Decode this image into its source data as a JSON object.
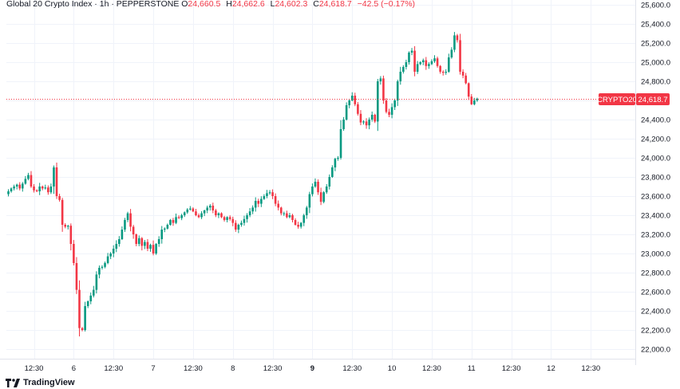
{
  "legend": {
    "title": "Global 20 Crypto Index · 1h · PEPPERSTONE",
    "o_label": "O",
    "o_value": "24,660.5",
    "h_label": "H",
    "h_value": "24,662.6",
    "l_label": "L",
    "l_value": "24,602.3",
    "c_label": "C",
    "c_value": "24,618.7",
    "change": "−42.5 (−0.17%)"
  },
  "price_tag": {
    "symbol": "CRYPTO20",
    "value": "24,618.7"
  },
  "brand": {
    "name": "TradingView"
  },
  "colors": {
    "up": "#089981",
    "down": "#f23645",
    "grid": "#f0f3fa",
    "axis_text": "#131722"
  },
  "chart_data": {
    "type": "candlestick",
    "title": "Global 20 Crypto Index · 1h · PEPPERSTONE",
    "ylim": [
      21900,
      25650
    ],
    "grid": true,
    "y_ticks": [
      22000,
      22200,
      22400,
      22600,
      22800,
      23000,
      23200,
      23400,
      23600,
      23800,
      24000,
      24200,
      24400,
      24600,
      24800,
      25000,
      25200,
      25400,
      25600
    ],
    "y_tick_labels": [
      "22,000.0",
      "22,200.0",
      "22,400.0",
      "22,600.0",
      "22,800.0",
      "23,000.0",
      "23,200.0",
      "23,400.0",
      "23,600.0",
      "23,800.0",
      "24,000.0",
      "24,200.0",
      "24,400.0",
      "24,600.0",
      "24,800.0",
      "25,000.0",
      "25,200.0",
      "25,400.0",
      "25,600.0"
    ],
    "x_ticks": [
      {
        "label": "12:30",
        "index": 9,
        "bold": false
      },
      {
        "label": "6",
        "index": 23,
        "bold": false
      },
      {
        "label": "12:30",
        "index": 37,
        "bold": false
      },
      {
        "label": "7",
        "index": 51,
        "bold": false
      },
      {
        "label": "12:30",
        "index": 65,
        "bold": false
      },
      {
        "label": "8",
        "index": 79,
        "bold": false
      },
      {
        "label": "12:30",
        "index": 93,
        "bold": false
      },
      {
        "label": "9",
        "index": 107,
        "bold": true
      },
      {
        "label": "12:30",
        "index": 121,
        "bold": false
      },
      {
        "label": "10",
        "index": 135,
        "bold": false
      },
      {
        "label": "12:30",
        "index": 149,
        "bold": false
      },
      {
        "label": "11",
        "index": 163,
        "bold": false
      },
      {
        "label": "12:30",
        "index": 177,
        "bold": false
      },
      {
        "label": "12",
        "index": 191,
        "bold": false
      },
      {
        "label": "12:30",
        "index": 205,
        "bold": false
      }
    ],
    "last_price": 24618.7,
    "close": [
      23650,
      23680,
      23700,
      23720,
      23680,
      23730,
      23780,
      23820,
      23700,
      23660,
      23650,
      23700,
      23680,
      23690,
      23640,
      23700,
      23900,
      23600,
      23560,
      23300,
      23280,
      23290,
      23100,
      22900,
      22620,
      22220,
      22200,
      22450,
      22500,
      22560,
      22620,
      22780,
      22850,
      22860,
      22900,
      22970,
      23000,
      23050,
      23100,
      23150,
      23250,
      23350,
      23420,
      23280,
      23200,
      23100,
      23160,
      23080,
      23120,
      23050,
      23090,
      23000,
      23100,
      23150,
      23250,
      23260,
      23300,
      23350,
      23320,
      23380,
      23370,
      23400,
      23430,
      23460,
      23470,
      23440,
      23400,
      23380,
      23420,
      23450,
      23480,
      23500,
      23450,
      23400,
      23420,
      23380,
      23350,
      23380,
      23360,
      23320,
      23250,
      23300,
      23320,
      23360,
      23400,
      23440,
      23480,
      23550,
      23520,
      23570,
      23600,
      23630,
      23640,
      23600,
      23520,
      23480,
      23420,
      23420,
      23380,
      23400,
      23350,
      23300,
      23280,
      23320,
      23400,
      23480,
      23620,
      23700,
      23750,
      23640,
      23540,
      23640,
      23700,
      23800,
      23900,
      23990,
      24000,
      24300,
      24400,
      24550,
      24600,
      24650,
      24560,
      24460,
      24370,
      24380,
      24340,
      24400,
      24450,
      24380,
      24800,
      24830,
      24600,
      24480,
      24450,
      24530,
      24600,
      24800,
      24900,
      24950,
      25000,
      25100,
      25120,
      24900,
      24980,
      25000,
      25020,
      24960,
      24980,
      25010,
      25040,
      24960,
      24900,
      24890,
      24900,
      25050,
      25130,
      25280,
      25230,
      24900,
      24860,
      24780,
      24640,
      24560,
      24600,
      24618.7
    ]
  }
}
